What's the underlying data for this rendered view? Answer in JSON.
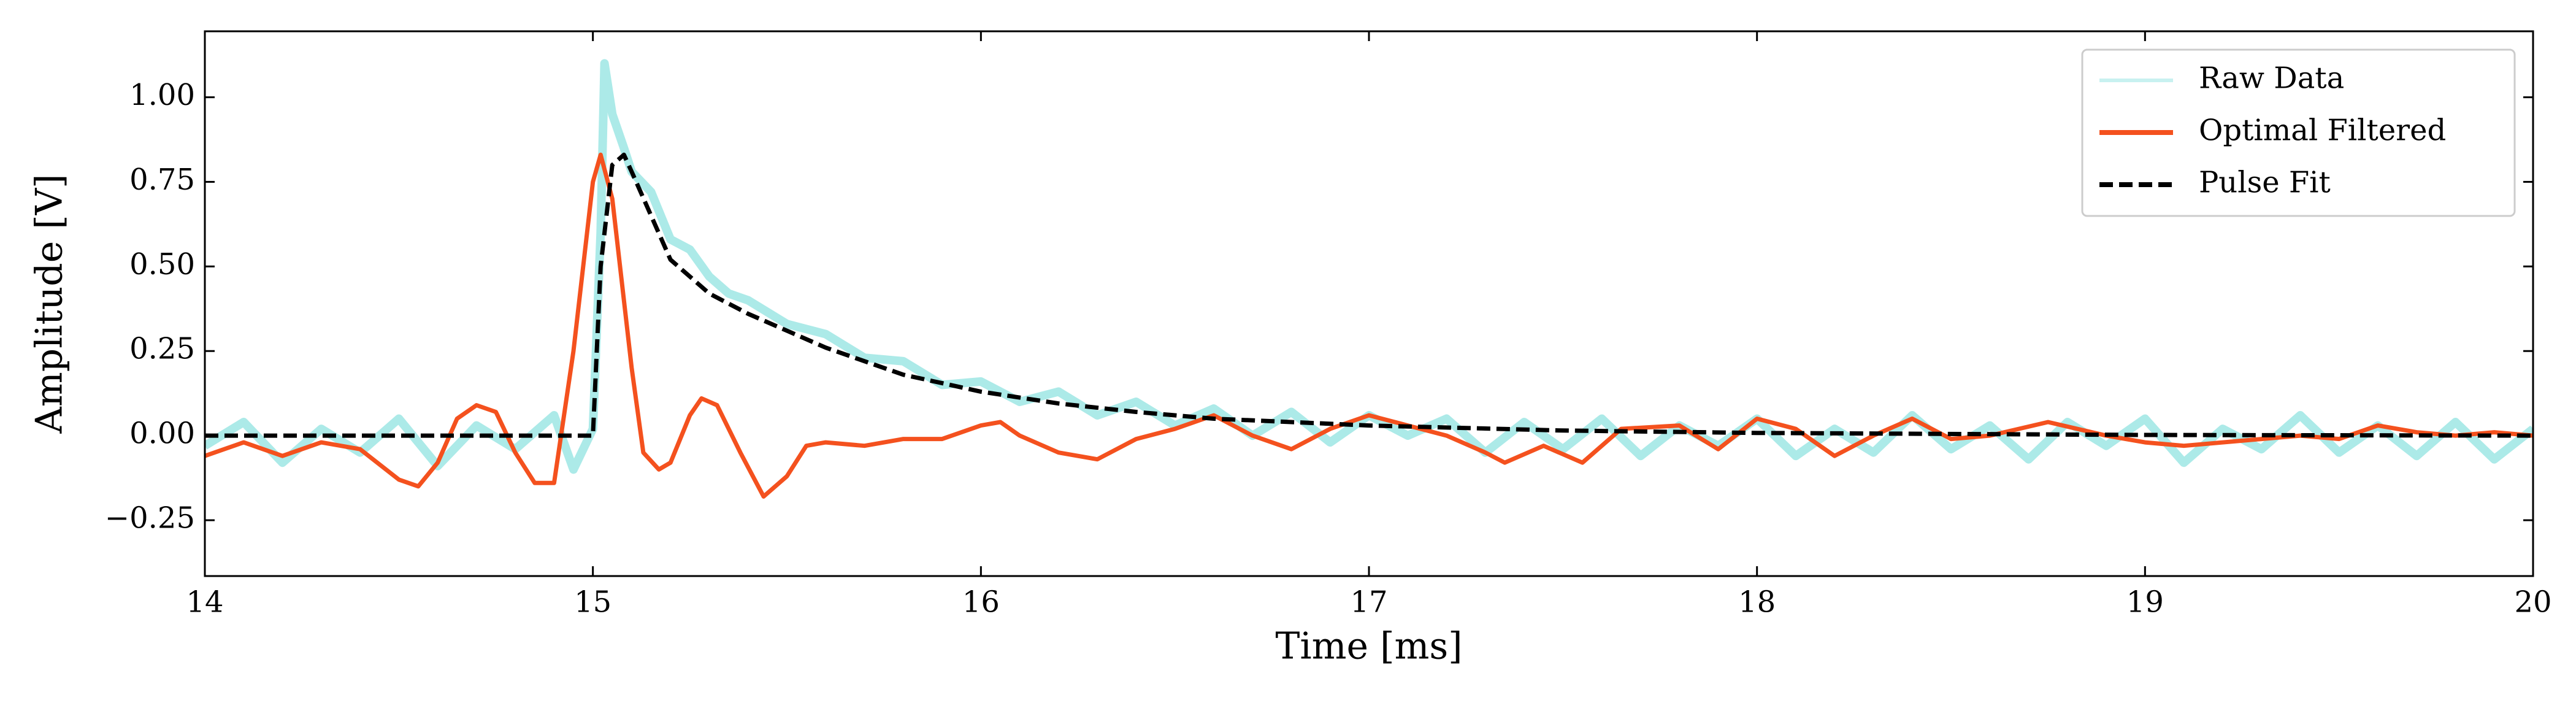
{
  "chart_data": {
    "type": "line",
    "xlabel": "Time [ms]",
    "ylabel": "Amplitude [V]",
    "xlim": [
      14,
      20
    ],
    "xticks": [
      14,
      15,
      16,
      17,
      18,
      19,
      20
    ],
    "ylim": [
      -0.415,
      1.195
    ],
    "yticks": [
      {
        "value": -0.25,
        "label": "−0.25"
      },
      {
        "value": 0,
        "label": "0.00"
      },
      {
        "value": 0.25,
        "label": "0.25"
      },
      {
        "value": 0.5,
        "label": "0.50"
      },
      {
        "value": 0.75,
        "label": "0.75"
      },
      {
        "value": 1,
        "label": "1.00"
      }
    ],
    "legend": "upper right",
    "series": [
      {
        "name": "Raw Data",
        "color": "#48d1cc",
        "linestyle": "solid",
        "x": [
          14.0,
          14.1,
          14.2,
          14.3,
          14.4,
          14.5,
          14.6,
          14.7,
          14.8,
          14.9,
          14.95,
          15.0,
          15.02,
          15.03,
          15.05,
          15.08,
          15.1,
          15.15,
          15.2,
          15.25,
          15.3,
          15.35,
          15.4,
          15.5,
          15.6,
          15.7,
          15.8,
          15.9,
          16.0,
          16.1,
          16.2,
          16.3,
          16.4,
          16.5,
          16.6,
          16.7,
          16.8,
          16.9,
          17.0,
          17.1,
          17.2,
          17.3,
          17.4,
          17.5,
          17.6,
          17.7,
          17.8,
          17.9,
          18.0,
          18.1,
          18.2,
          18.3,
          18.4,
          18.5,
          18.6,
          18.7,
          18.8,
          18.9,
          19.0,
          19.1,
          19.2,
          19.3,
          19.4,
          19.5,
          19.6,
          19.7,
          19.8,
          19.9,
          20.0
        ],
        "values": [
          -0.03,
          0.04,
          -0.08,
          0.02,
          -0.05,
          0.05,
          -0.09,
          0.03,
          -0.04,
          0.06,
          -0.1,
          0.02,
          0.6,
          1.1,
          0.95,
          0.85,
          0.78,
          0.72,
          0.58,
          0.55,
          0.47,
          0.42,
          0.4,
          0.33,
          0.3,
          0.23,
          0.22,
          0.15,
          0.16,
          0.1,
          0.13,
          0.06,
          0.1,
          0.03,
          0.08,
          0.0,
          0.07,
          -0.02,
          0.06,
          0.0,
          0.05,
          -0.05,
          0.04,
          -0.04,
          0.05,
          -0.06,
          0.03,
          -0.03,
          0.05,
          -0.06,
          0.02,
          -0.05,
          0.06,
          -0.04,
          0.03,
          -0.07,
          0.04,
          -0.03,
          0.05,
          -0.08,
          0.02,
          -0.04,
          0.06,
          -0.05,
          0.03,
          -0.06,
          0.04,
          -0.07,
          0.02
        ]
      },
      {
        "name": "Optimal Filtered",
        "color": "#f4511e",
        "linestyle": "solid",
        "x": [
          14.0,
          14.1,
          14.2,
          14.3,
          14.4,
          14.5,
          14.55,
          14.6,
          14.65,
          14.7,
          14.75,
          14.8,
          14.85,
          14.9,
          14.95,
          15.0,
          15.02,
          15.05,
          15.1,
          15.13,
          15.17,
          15.2,
          15.25,
          15.28,
          15.32,
          15.38,
          15.44,
          15.5,
          15.55,
          15.6,
          15.7,
          15.8,
          15.9,
          16.0,
          16.05,
          16.1,
          16.2,
          16.3,
          16.4,
          16.5,
          16.6,
          16.7,
          16.8,
          16.9,
          17.0,
          17.1,
          17.2,
          17.3,
          17.35,
          17.45,
          17.55,
          17.65,
          17.8,
          17.9,
          18.0,
          18.1,
          18.2,
          18.3,
          18.4,
          18.5,
          18.6,
          18.75,
          18.9,
          19.0,
          19.1,
          19.3,
          19.4,
          19.5,
          19.6,
          19.7,
          19.8,
          19.9,
          20.0
        ],
        "values": [
          -0.06,
          -0.02,
          -0.06,
          -0.02,
          -0.04,
          -0.13,
          -0.15,
          -0.08,
          0.05,
          0.09,
          0.07,
          -0.05,
          -0.14,
          -0.14,
          0.25,
          0.75,
          0.83,
          0.7,
          0.2,
          -0.05,
          -0.1,
          -0.08,
          0.06,
          0.11,
          0.09,
          -0.05,
          -0.18,
          -0.12,
          -0.03,
          -0.02,
          -0.03,
          -0.01,
          -0.01,
          0.03,
          0.04,
          0.0,
          -0.05,
          -0.07,
          -0.01,
          0.02,
          0.06,
          0.0,
          -0.04,
          0.02,
          0.06,
          0.03,
          0.0,
          -0.05,
          -0.08,
          -0.03,
          -0.08,
          0.02,
          0.03,
          -0.04,
          0.05,
          0.02,
          -0.06,
          0.0,
          0.05,
          -0.01,
          0.0,
          0.04,
          0.0,
          -0.02,
          -0.03,
          -0.01,
          0.0,
          -0.01,
          0.03,
          0.01,
          0.0,
          0.01,
          0.0
        ]
      },
      {
        "name": "Pulse Fit",
        "color": "#000000",
        "linestyle": "dashed",
        "x": [
          14.0,
          14.5,
          15.0,
          15.02,
          15.05,
          15.08,
          15.1,
          15.15,
          15.2,
          15.3,
          15.4,
          15.5,
          15.6,
          15.7,
          15.8,
          15.9,
          16.0,
          16.2,
          16.4,
          16.6,
          16.8,
          17.0,
          17.5,
          18.0,
          19.0,
          20.0
        ],
        "values": [
          0,
          0,
          0,
          0.5,
          0.8,
          0.83,
          0.78,
          0.65,
          0.52,
          0.42,
          0.36,
          0.31,
          0.26,
          0.22,
          0.18,
          0.155,
          0.13,
          0.095,
          0.07,
          0.05,
          0.04,
          0.03,
          0.015,
          0.008,
          0.002,
          0
        ]
      }
    ]
  }
}
